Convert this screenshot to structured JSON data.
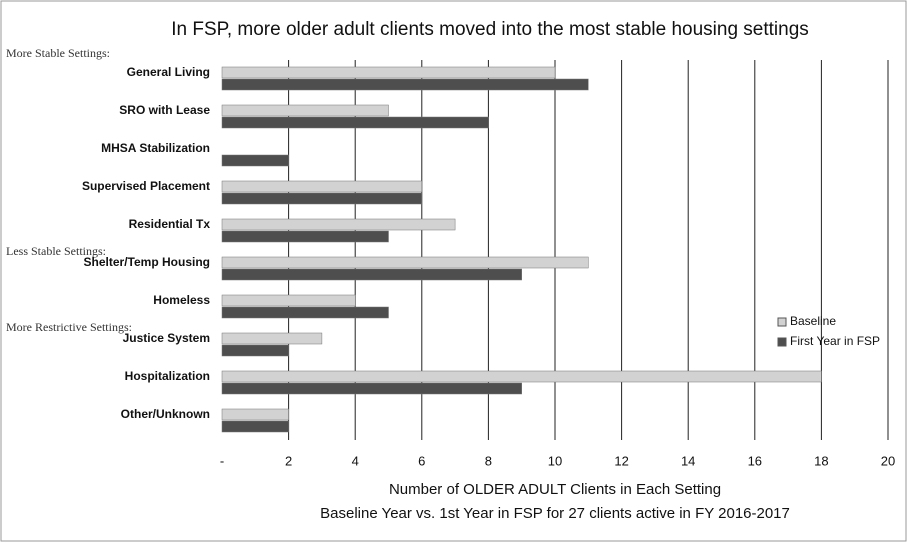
{
  "chart_data": {
    "type": "hbar",
    "title": "In FSP, more older adult clients moved into the most stable housing settings",
    "x_label": "Number of OLDER ADULT Clients in Each Setting",
    "subtitle": "Baseline Year vs. 1st Year in FSP for 27 clients active in FY 2016-2017",
    "group_labels": [
      "More Stable Settings:",
      "Less Stable Settings:",
      "More Restrictive Settings:"
    ],
    "categories": [
      "General Living",
      "SRO with Lease",
      "MHSA Stabilization",
      "Supervised Placement",
      "Residential Tx",
      "Shelter/Temp Housing",
      "Homeless",
      "Justice System",
      "Hospitalization",
      "Other/Unknown"
    ],
    "series": [
      {
        "name": "Baseline",
        "color": "#d2d2d2",
        "values": [
          10,
          5,
          0,
          6,
          7,
          11,
          4,
          3,
          18,
          2
        ]
      },
      {
        "name": "First Year in FSP",
        "color": "#4e4e4e",
        "values": [
          11,
          8,
          2,
          6,
          5,
          9,
          5,
          2,
          9,
          2
        ]
      }
    ],
    "xlim": [
      0,
      20
    ],
    "xticks": [
      {
        "value": 0,
        "label": "-"
      },
      2,
      4,
      6,
      8,
      10,
      12,
      14,
      16,
      18,
      20
    ],
    "grid": true,
    "legend": "right"
  }
}
